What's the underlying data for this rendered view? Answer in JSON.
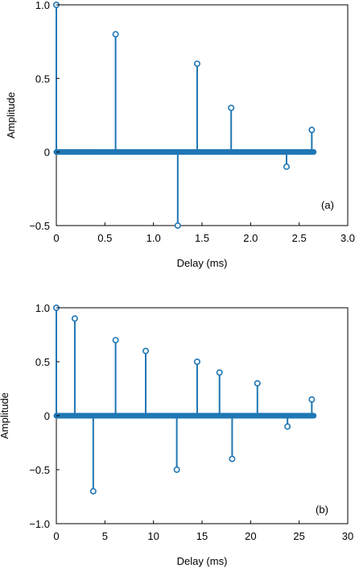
{
  "colors": {
    "stem": "#1f77b4",
    "axis": "#000000",
    "background": "#ffffff"
  },
  "chart_data": [
    {
      "type": "stem",
      "panel_label": "(a)",
      "xlabel": "Delay (ms)",
      "ylabel": "Amplitude",
      "xlim": [
        0,
        3.0
      ],
      "ylim": [
        -0.5,
        1.0
      ],
      "xticks": [
        "0",
        "0.5",
        "1.0",
        "1.5",
        "2.0",
        "2.5",
        "3.0"
      ],
      "xtick_values": [
        0,
        0.5,
        1.0,
        1.5,
        2.0,
        2.5,
        3.0
      ],
      "yticks": [
        "−0.5",
        "0",
        "0.5",
        "1.0"
      ],
      "ytick_values": [
        -0.5,
        0,
        0.5,
        1.0
      ],
      "baseline_x_range": [
        0,
        2.65
      ],
      "x": [
        0,
        0.61,
        1.25,
        1.45,
        1.8,
        2.37,
        2.63
      ],
      "y": [
        1.0,
        0.8,
        -0.5,
        0.6,
        0.3,
        -0.1,
        0.15
      ]
    },
    {
      "type": "stem",
      "panel_label": "(b)",
      "xlabel": "Delay (ms)",
      "ylabel": "Amplitude",
      "xlim": [
        0,
        30
      ],
      "ylim": [
        -1.0,
        1.0
      ],
      "xticks": [
        "0",
        "5",
        "10",
        "15",
        "20",
        "25",
        "30"
      ],
      "xtick_values": [
        0,
        5,
        10,
        15,
        20,
        25,
        30
      ],
      "yticks": [
        "−1.0",
        "−0.5",
        "0",
        "0.5",
        "1.0"
      ],
      "ytick_values": [
        -1.0,
        -0.5,
        0,
        0.5,
        1.0
      ],
      "baseline_x_range": [
        0,
        26.5
      ],
      "x": [
        0,
        1.9,
        3.8,
        6.1,
        9.2,
        12.4,
        14.5,
        16.8,
        18.1,
        20.7,
        23.8,
        26.3
      ],
      "y": [
        1.0,
        0.9,
        -0.7,
        0.7,
        0.6,
        -0.5,
        0.5,
        0.4,
        -0.4,
        0.3,
        -0.1,
        0.15
      ]
    }
  ]
}
